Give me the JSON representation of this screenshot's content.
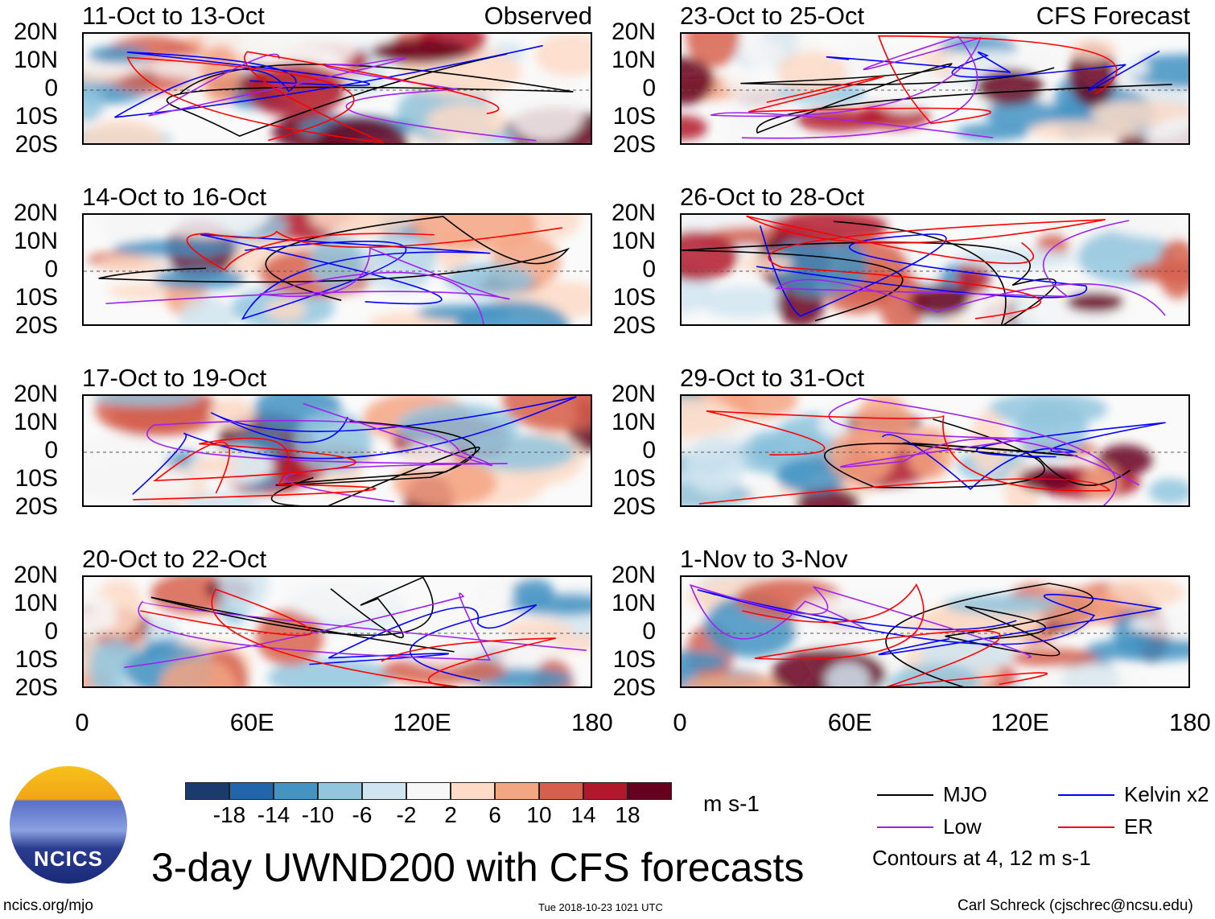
{
  "panels_left": [
    {
      "title": "11-Oct to 13-Oct",
      "tag": "Observed"
    },
    {
      "title": "14-Oct to 16-Oct"
    },
    {
      "title": "17-Oct to 19-Oct"
    },
    {
      "title": "20-Oct to 22-Oct"
    }
  ],
  "panels_right": [
    {
      "title": "23-Oct to 25-Oct",
      "tag": "CFS Forecast"
    },
    {
      "title": "26-Oct to 28-Oct"
    },
    {
      "title": "29-Oct to 31-Oct"
    },
    {
      "title": "1-Nov to 3-Nov"
    }
  ],
  "lat_labels": [
    "20N",
    "10N",
    "0",
    "10S",
    "20S"
  ],
  "lon_labels": [
    "0",
    "60E",
    "120E",
    "180"
  ],
  "colorbar": {
    "labels": [
      "-18",
      "-14",
      "-10",
      "-6",
      "-2",
      "2",
      "6",
      "10",
      "14",
      "18"
    ],
    "colors": [
      "#1b3b6f",
      "#2166ac",
      "#4393c3",
      "#92c5de",
      "#d1e5f0",
      "#f7f7f7",
      "#fddbc7",
      "#f4a582",
      "#d6604d",
      "#b2182b",
      "#67001f"
    ],
    "units": "m s-1"
  },
  "legend": {
    "items": [
      {
        "label": "MJO",
        "color": "#000000"
      },
      {
        "label": "Kelvin x2",
        "color": "#0000ff"
      },
      {
        "label": "Low",
        "color": "#a020f0"
      },
      {
        "label": "ER",
        "color": "#ff0000"
      }
    ],
    "note": "Contours at 4, 12 m s-1"
  },
  "title": "3-day UWND200 with CFS forecasts",
  "logo": {
    "text": "NCICS"
  },
  "footer": {
    "left": "ncics.org/mjo",
    "center": "Tue 2018-10-23 1021 UTC",
    "right": "Carl Schreck (cjschrec@ncsu.edu)"
  }
}
